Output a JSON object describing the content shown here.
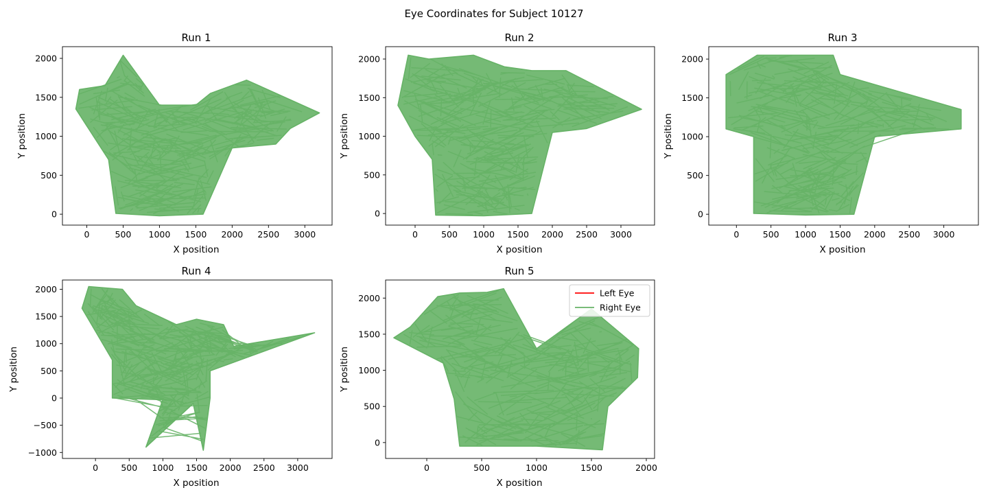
{
  "figure": {
    "suptitle": "Eye Coordinates for Subject 10127"
  },
  "chart_data": [
    {
      "type": "line",
      "title": "Run 1",
      "xlabel": "X position",
      "ylabel": "Y position",
      "xlim": [
        -335,
        3375
      ],
      "ylim": [
        -140,
        2150
      ],
      "xticks": [
        0,
        500,
        1000,
        1500,
        2000,
        2500,
        3000
      ],
      "yticks": [
        0,
        500,
        1000,
        1500,
        2000
      ],
      "xtick_labels": [
        "0",
        "500",
        "1000",
        "1500",
        "2000",
        "2500",
        "3000"
      ],
      "ytick_labels": [
        "0",
        "500",
        "1000",
        "1500",
        "2000"
      ],
      "series": [
        {
          "name": "Left Eye",
          "color": "#ff0000",
          "x": [],
          "y": []
        },
        {
          "name": "Right Eye",
          "color": "#66b266",
          "footprint_x": [
            -150,
            -100,
            250,
            500,
            1000,
            1500,
            1700,
            2200,
            3200,
            2800,
            2600,
            2000,
            1600,
            1000,
            400,
            300
          ],
          "footprint_y": [
            1350,
            1600,
            1650,
            2040,
            1400,
            1400,
            1550,
            1720,
            1300,
            1100,
            900,
            850,
            0,
            -20,
            10,
            700
          ]
        }
      ]
    },
    {
      "type": "line",
      "title": "Run 2",
      "xlabel": "X position",
      "ylabel": "Y position",
      "xlim": [
        -430,
        3490
      ],
      "ylim": [
        -150,
        2160
      ],
      "xticks": [
        0,
        500,
        1000,
        1500,
        2000,
        2500,
        3000
      ],
      "yticks": [
        0,
        500,
        1000,
        1500,
        2000
      ],
      "xtick_labels": [
        "0",
        "500",
        "1000",
        "1500",
        "2000",
        "2500",
        "3000"
      ],
      "ytick_labels": [
        "0",
        "500",
        "1000",
        "1500",
        "2000"
      ],
      "series": [
        {
          "name": "Left Eye",
          "color": "#ff0000",
          "x": [],
          "y": []
        },
        {
          "name": "Right Eye",
          "color": "#66b266",
          "footprint_x": [
            -250,
            -100,
            200,
            850,
            1300,
            1700,
            2200,
            3300,
            2500,
            2000,
            1700,
            1000,
            300,
            250,
            0
          ],
          "footprint_y": [
            1400,
            2050,
            2000,
            2050,
            1900,
            1850,
            1850,
            1350,
            1100,
            1050,
            0,
            -30,
            -20,
            700,
            1000
          ]
        }
      ]
    },
    {
      "type": "line",
      "title": "Run 3",
      "xlabel": "X position",
      "ylabel": "Y position",
      "xlim": [
        -400,
        3500
      ],
      "ylim": [
        -140,
        2160
      ],
      "xticks": [
        0,
        500,
        1000,
        1500,
        2000,
        2500,
        3000
      ],
      "yticks": [
        0,
        500,
        1000,
        1500,
        2000
      ],
      "xtick_labels": [
        "0",
        "500",
        "1000",
        "1500",
        "2000",
        "2500",
        "3000"
      ],
      "ytick_labels": [
        "0",
        "500",
        "1000",
        "1500",
        "2000"
      ],
      "series": [
        {
          "name": "Left Eye",
          "color": "#ff0000",
          "x": [],
          "y": []
        },
        {
          "name": "Right Eye",
          "color": "#66b266",
          "footprint_x": [
            -150,
            -150,
            300,
            1400,
            1500,
            3250,
            3250,
            2000,
            1700,
            1000,
            250,
            250
          ],
          "footprint_y": [
            1100,
            1800,
            2050,
            2050,
            1800,
            1350,
            1100,
            1000,
            0,
            -10,
            10,
            1000
          ]
        }
      ]
    },
    {
      "type": "line",
      "title": "Run 4",
      "xlabel": "X position",
      "ylabel": "Y position",
      "xlim": [
        -490,
        3510
      ],
      "ylim": [
        -1110,
        2170
      ],
      "xticks": [
        0,
        500,
        1000,
        1500,
        2000,
        2500,
        3000
      ],
      "yticks": [
        -1000,
        -500,
        0,
        500,
        1000,
        1500,
        2000
      ],
      "xtick_labels": [
        "0",
        "500",
        "1000",
        "1500",
        "2000",
        "2500",
        "3000"
      ],
      "ytick_labels": [
        "−1000",
        "−500",
        "0",
        "500",
        "1000",
        "1500",
        "2000"
      ],
      "series": [
        {
          "name": "Left Eye",
          "color": "#ff0000",
          "x": [],
          "y": []
        },
        {
          "name": "Right Eye",
          "color": "#66b266",
          "footprint_x": [
            -200,
            -100,
            400,
            600,
            1200,
            1500,
            1900,
            2050,
            3250,
            1700,
            1700,
            1600,
            1450,
            750,
            1000,
            250,
            250
          ],
          "footprint_y": [
            1650,
            2050,
            2000,
            1700,
            1350,
            1450,
            1350,
            950,
            1200,
            500,
            0,
            -960,
            -100,
            -900,
            -30,
            0,
            700
          ]
        }
      ]
    },
    {
      "type": "line",
      "title": "Run 5",
      "xlabel": "X position",
      "ylabel": "Y position",
      "xlim": [
        -375,
        2075
      ],
      "ylim": [
        -220,
        2250
      ],
      "xticks": [
        0,
        500,
        1000,
        1500,
        2000
      ],
      "yticks": [
        0,
        500,
        1000,
        1500,
        2000
      ],
      "xtick_labels": [
        "0",
        "500",
        "1000",
        "1500",
        "2000"
      ],
      "ytick_labels": [
        "0",
        "500",
        "1000",
        "1500",
        "2000"
      ],
      "legend": {
        "position": "upper right",
        "entries": [
          "Left Eye",
          "Right Eye"
        ]
      },
      "series": [
        {
          "name": "Left Eye",
          "color": "#ff0000",
          "x": [],
          "y": []
        },
        {
          "name": "Right Eye",
          "color": "#66b266",
          "footprint_x": [
            -300,
            -150,
            100,
            300,
            550,
            700,
            1000,
            1500,
            1930,
            1920,
            1650,
            1600,
            1000,
            300,
            250,
            150
          ],
          "footprint_y": [
            1450,
            1600,
            2020,
            2070,
            2080,
            2130,
            1300,
            1850,
            1300,
            900,
            500,
            -100,
            -50,
            -50,
            600,
            1100
          ]
        }
      ]
    }
  ]
}
